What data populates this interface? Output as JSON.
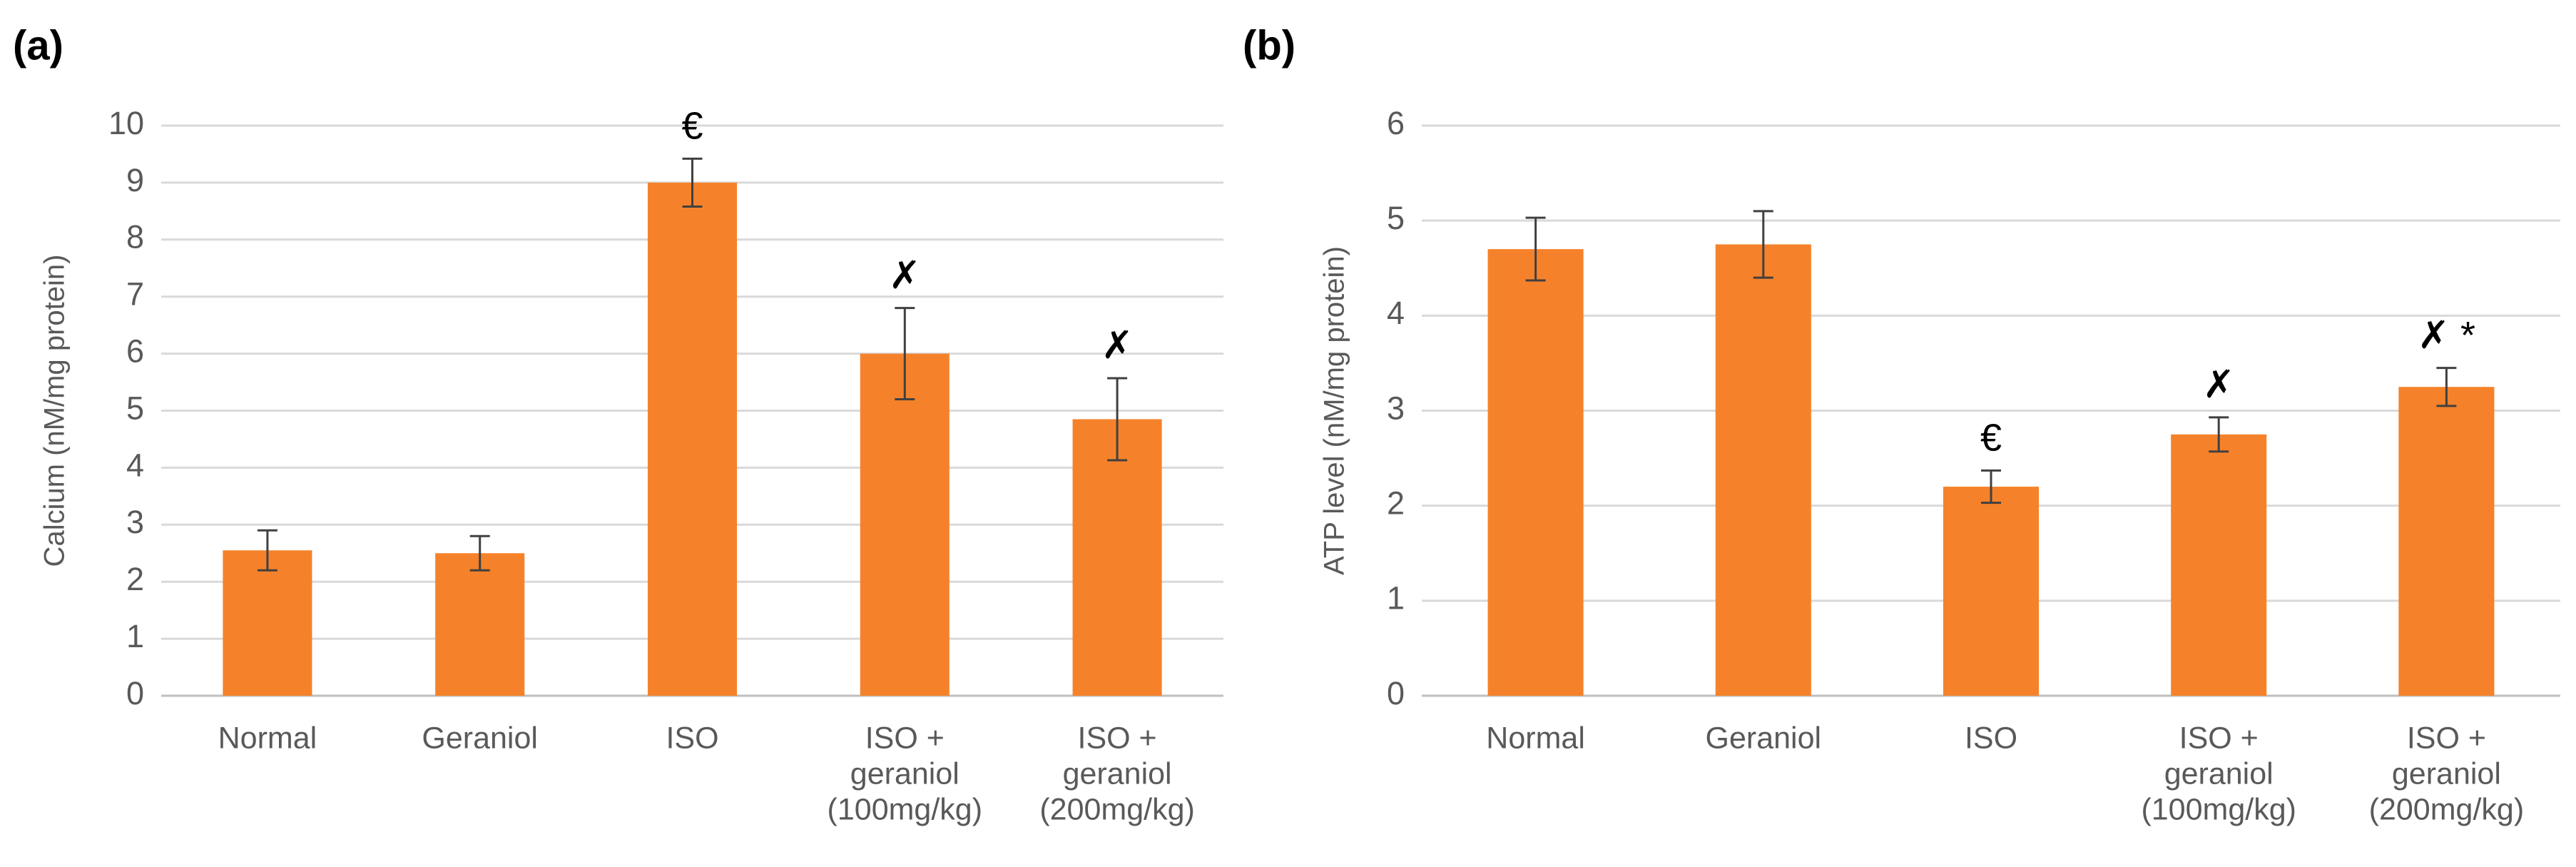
{
  "chart_data": [
    {
      "type": "bar",
      "panel_label": "(a)",
      "y_label": "Calcium (nM/mg protein)",
      "categories": [
        [
          "Normal"
        ],
        [
          "Geraniol"
        ],
        [
          "ISO"
        ],
        [
          "ISO +",
          "geraniol",
          "(100mg/kg)"
        ],
        [
          "ISO +",
          "geraniol",
          "(200mg/kg)"
        ]
      ],
      "values": [
        2.55,
        2.5,
        9.0,
        6.0,
        4.85
      ],
      "errors": [
        0.35,
        0.3,
        0.42,
        0.8,
        0.72
      ],
      "annotations": [
        null,
        null,
        "€",
        "✗",
        "✗"
      ],
      "color": "#f5822a",
      "ylim": [
        0,
        10
      ],
      "yticks": [
        0,
        1,
        2,
        3,
        4,
        5,
        6,
        7,
        8,
        9,
        10
      ],
      "grid": true
    },
    {
      "type": "bar",
      "panel_label": "(b)",
      "y_label": "ATP level (nM/mg protein)",
      "categories": [
        [
          "Normal"
        ],
        [
          "Geraniol"
        ],
        [
          "ISO"
        ],
        [
          "ISO +",
          "geraniol",
          "(100mg/kg)"
        ],
        [
          "ISO +",
          "geraniol",
          "(200mg/kg)"
        ]
      ],
      "values": [
        4.7,
        4.75,
        2.2,
        2.75,
        3.25
      ],
      "errors": [
        0.33,
        0.35,
        0.17,
        0.18,
        0.2
      ],
      "annotations": [
        null,
        null,
        "€",
        "✗",
        "✗ *"
      ],
      "color": "#f5822a",
      "ylim": [
        0,
        6
      ],
      "yticks": [
        0,
        1,
        2,
        3,
        4,
        5,
        6
      ],
      "grid": true
    }
  ]
}
